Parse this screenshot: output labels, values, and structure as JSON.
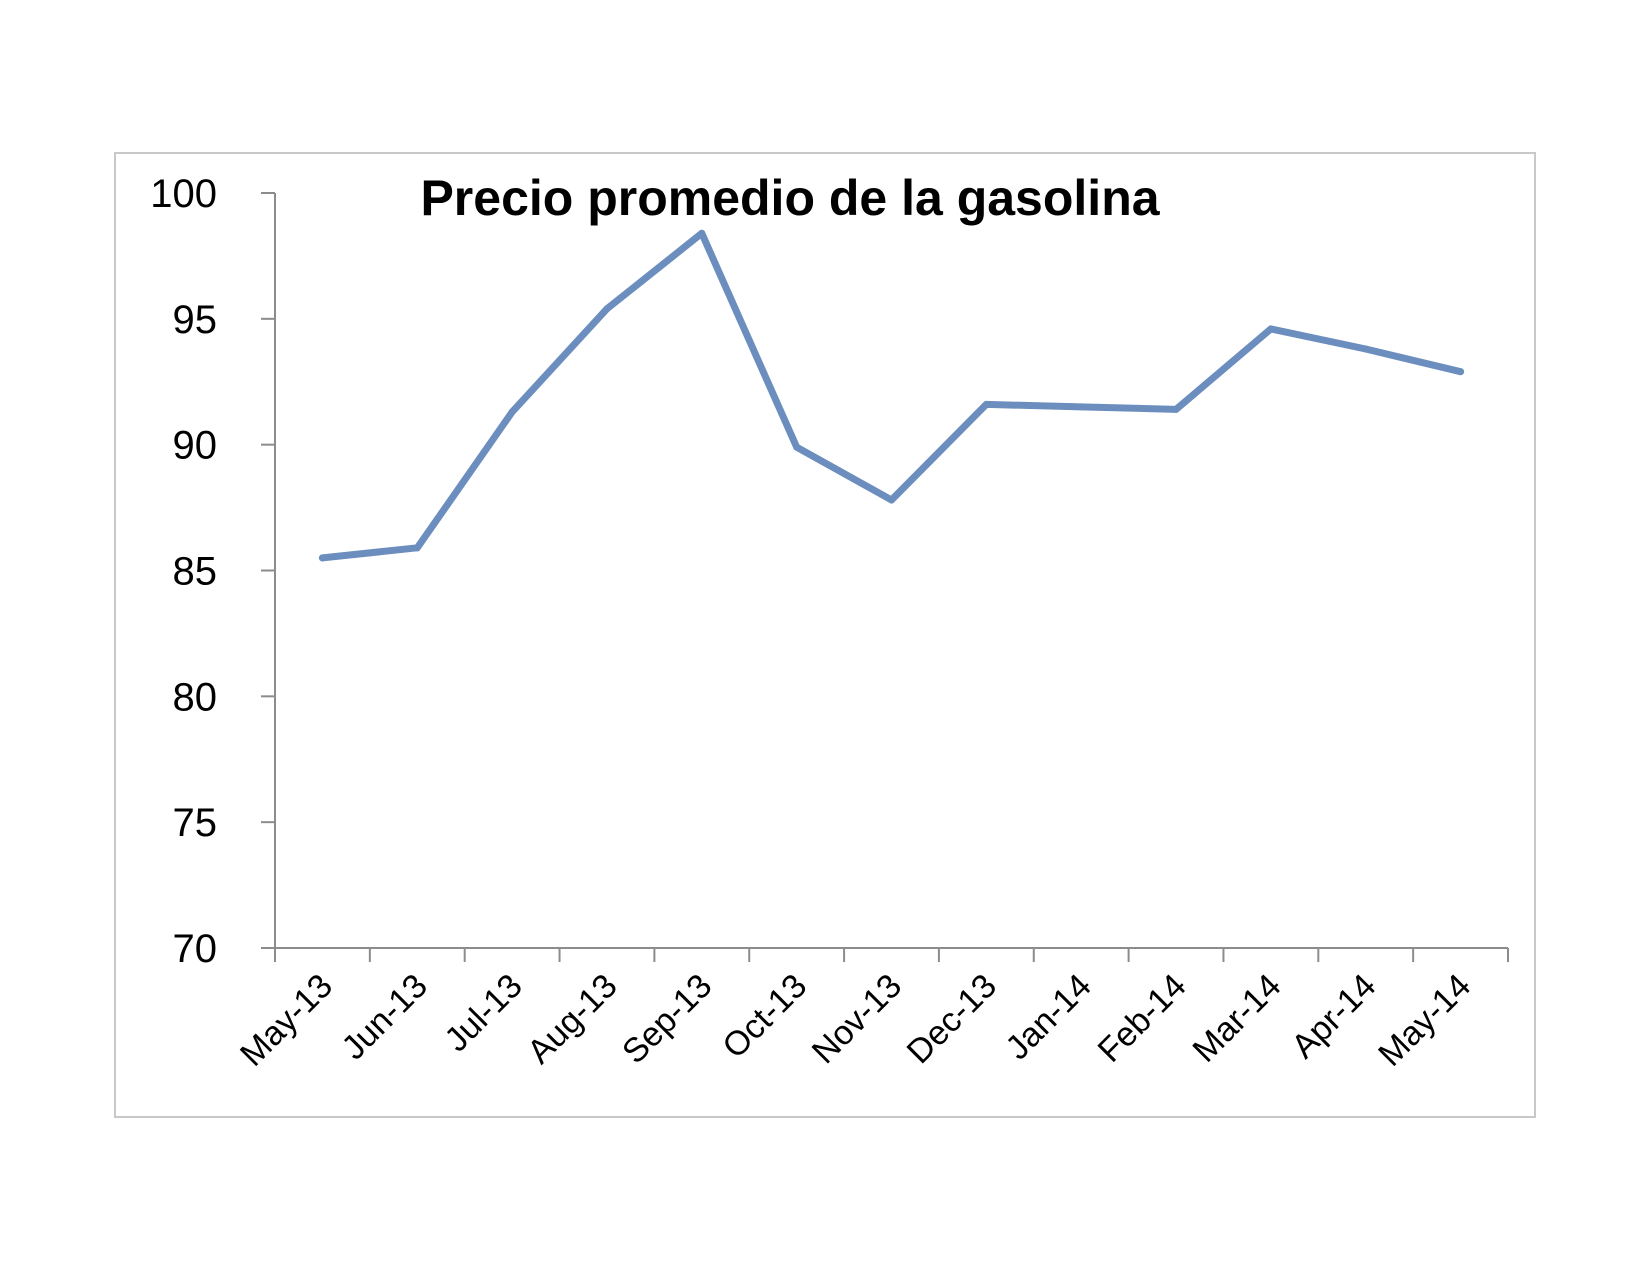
{
  "chart_data": {
    "type": "line",
    "title": "Precio promedio de la gasolina",
    "xlabel": "",
    "ylabel": "",
    "categories": [
      "May-13",
      "Jun-13",
      "Jul-13",
      "Aug-13",
      "Sep-13",
      "Oct-13",
      "Nov-13",
      "Dec-13",
      "Jan-14",
      "Feb-14",
      "Mar-14",
      "Apr-14",
      "May-14"
    ],
    "series": [
      {
        "values": [
          85.5,
          85.9,
          91.3,
          95.4,
          98.4,
          89.9,
          87.8,
          91.6,
          91.5,
          91.4,
          94.6,
          93.8,
          92.9
        ],
        "color": "#6C8EBF"
      }
    ],
    "ylim": [
      70,
      100
    ],
    "yticks": [
      70,
      75,
      80,
      85,
      90,
      95,
      100
    ],
    "grid": false,
    "legend": "none"
  }
}
